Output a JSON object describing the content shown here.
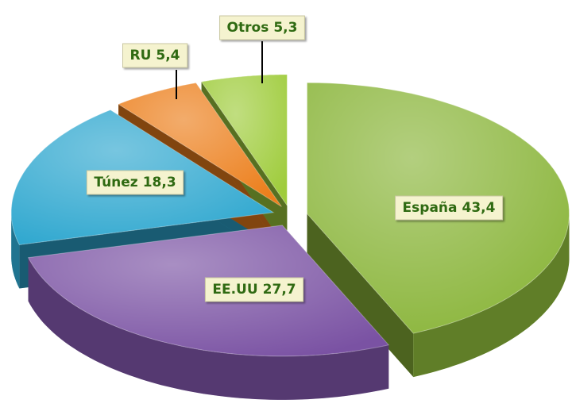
{
  "chart_data": {
    "type": "pie",
    "categories": [
      "España",
      "EE.UU",
      "Túnez",
      "RU",
      "Otros"
    ],
    "values": [
      43.4,
      27.7,
      18.3,
      5.4,
      5.3
    ],
    "value_labels": [
      "43,4",
      "27,7",
      "18,3",
      "5,4",
      "5,3"
    ],
    "colors": [
      "#8ab53a",
      "#7a52a3",
      "#2ea7cf",
      "#ec7f1c",
      "#9fcc3c"
    ]
  }
}
